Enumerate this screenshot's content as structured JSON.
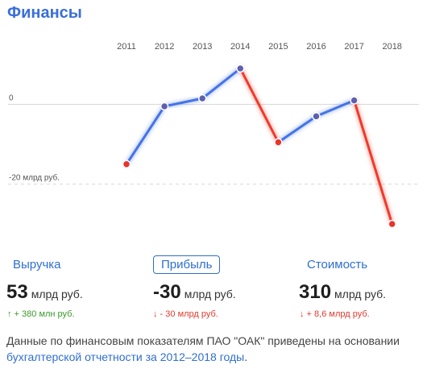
{
  "header": {
    "title": "Финансы"
  },
  "chart_data": {
    "type": "line",
    "x": [
      "2011",
      "2012",
      "2013",
      "2014",
      "2015",
      "2016",
      "2017",
      "2018"
    ],
    "series": [
      {
        "values": [
          -15,
          -0.5,
          1.5,
          9,
          -9.5,
          -3,
          1,
          -30
        ]
      }
    ],
    "y_tick_labels": [
      "0",
      "-20 млрд руб."
    ],
    "y_ticks": [
      0,
      -20
    ],
    "ylim": [
      -31,
      9
    ],
    "colors": {
      "down": "#f03a2c",
      "up": "#4573e8",
      "point_down": "#e8352a",
      "point_up": "#5f5fb0"
    }
  },
  "tabs": [
    {
      "label": "Выручка"
    },
    {
      "label": "Прибыль"
    },
    {
      "label": "Стоимость"
    }
  ],
  "metrics": [
    {
      "value": "53",
      "unit": "млрд руб.",
      "delta": "↑ + 380 млн руб."
    },
    {
      "value": "-30",
      "unit": "млрд руб.",
      "delta": "↓ - 30 млрд руб."
    },
    {
      "value": "310",
      "unit": "млрд руб.",
      "delta": "↓ + 8,6 млрд руб."
    }
  ],
  "note": {
    "text": "Данные по финансовым показателям ПАО \"ОАК\" приведены на основании",
    "link": "бухгалтерской отчетности за 2012–2018 годы",
    "end": "."
  }
}
